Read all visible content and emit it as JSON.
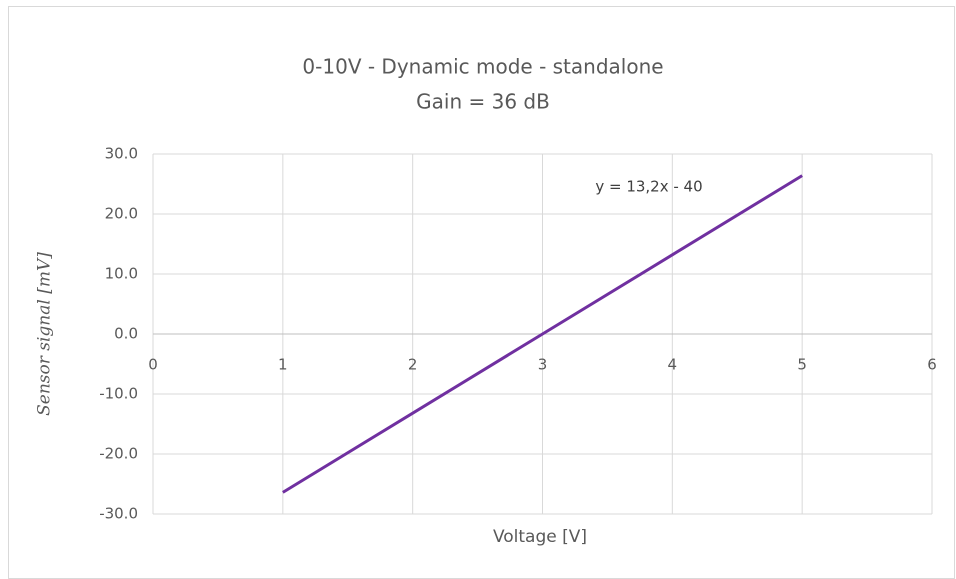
{
  "chart_data": {
    "type": "line",
    "title": "0-10V - Dynamic mode - standalone",
    "subtitle": "Gain = 36 dB",
    "x_label": "Voltage [V]",
    "y_label": "Sensor signal [mV]",
    "annotation": "y = 13,2x - 40",
    "x": [
      1,
      2,
      3,
      4,
      5
    ],
    "values": [
      -26.4,
      -13.2,
      0,
      13.2,
      26.4
    ],
    "color": "#7030a0",
    "xlim": [
      0,
      6
    ],
    "xticks": [
      0,
      1,
      2,
      3,
      4,
      5,
      6
    ],
    "ylim": [
      -30,
      30
    ],
    "yticks": [
      {
        "value": -30,
        "label": "-30.0"
      },
      {
        "value": -20,
        "label": "-20.0"
      },
      {
        "value": -10,
        "label": "-10.0"
      },
      {
        "value": 0,
        "label": "0.0"
      },
      {
        "value": 10,
        "label": "10.0"
      },
      {
        "value": 20,
        "label": "20.0"
      },
      {
        "value": 30,
        "label": "30.0"
      }
    ],
    "grid": true
  }
}
